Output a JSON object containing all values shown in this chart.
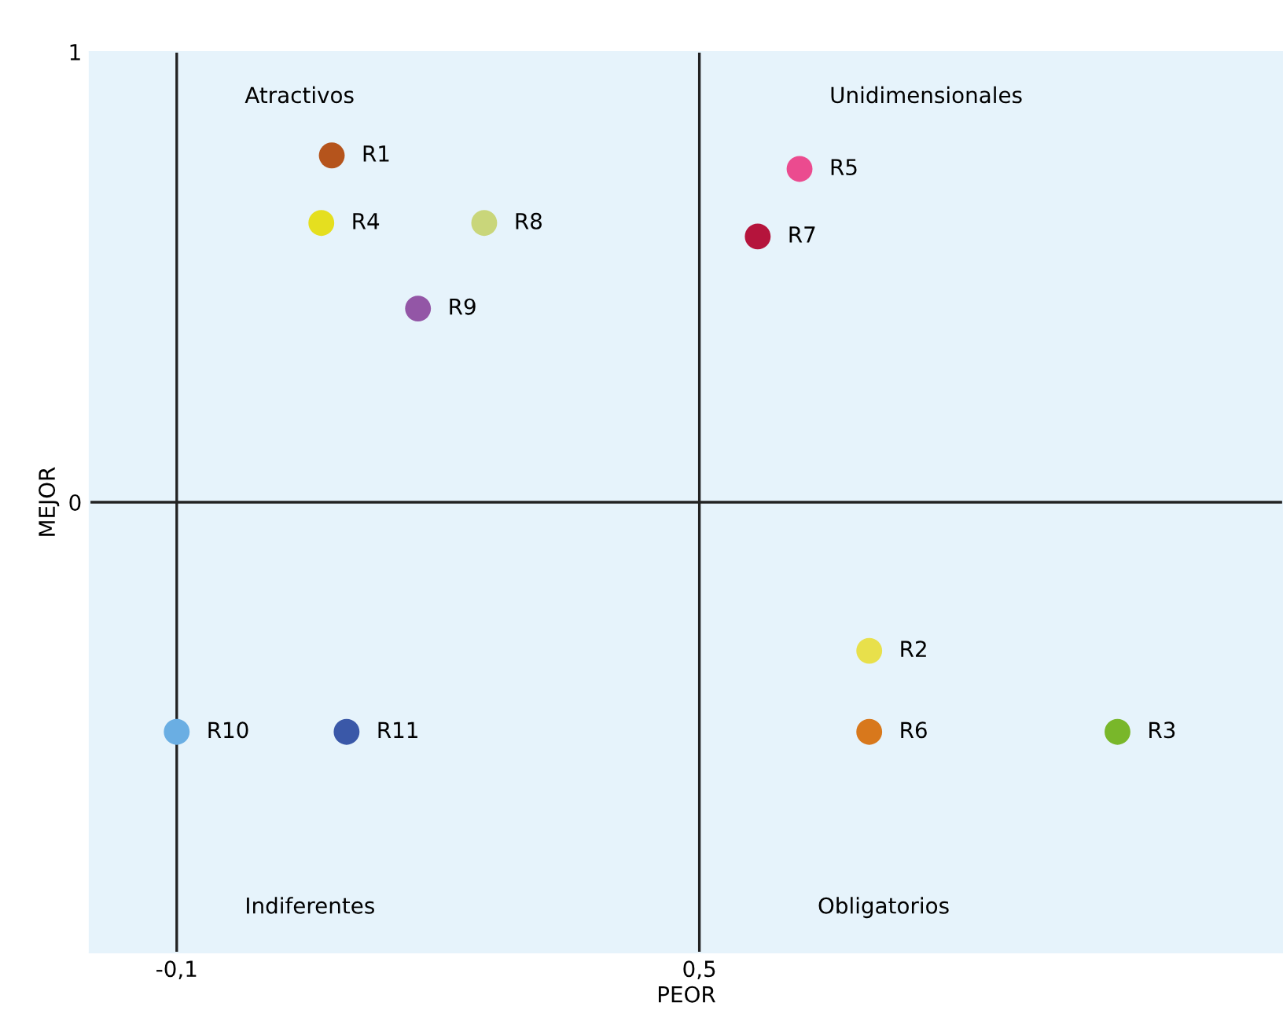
{
  "chart_data": {
    "type": "scatter",
    "xlabel": "PEOR",
    "ylabel": "MEJOR",
    "xlim": [
      -0.2,
      1.17
    ],
    "ylim": [
      -1,
      1
    ],
    "xticks": [
      {
        "value": -0.1,
        "label": "-0,1"
      },
      {
        "value": 0.5,
        "label": "0,5"
      }
    ],
    "yticks": [
      0,
      1
    ],
    "legend": false,
    "marker": "circle",
    "series": [
      {
        "name": "R1",
        "color": "#b5541c",
        "x": [
          0.078
        ],
        "values": [
          0.77
        ]
      },
      {
        "name": "R4",
        "color": "#e5df1f",
        "x": [
          0.066
        ],
        "values": [
          0.62
        ]
      },
      {
        "name": "R8",
        "color": "#c9d67a",
        "x": [
          0.253
        ],
        "values": [
          0.62
        ]
      },
      {
        "name": "R9",
        "color": "#9356a6",
        "x": [
          0.177
        ],
        "values": [
          0.43
        ]
      },
      {
        "name": "R5",
        "color": "#eb4b8f",
        "x": [
          0.615
        ],
        "values": [
          0.74
        ]
      },
      {
        "name": "R7",
        "color": "#b5143c",
        "x": [
          0.567
        ],
        "values": [
          0.59
        ]
      },
      {
        "name": "R2",
        "color": "#e8e04b",
        "x": [
          0.695
        ],
        "values": [
          -0.33
        ]
      },
      {
        "name": "R6",
        "color": "#d8781c",
        "x": [
          0.695
        ],
        "values": [
          -0.51
        ]
      },
      {
        "name": "R3",
        "color": "#79b72a",
        "x": [
          0.98
        ],
        "values": [
          -0.51
        ]
      },
      {
        "name": "R10",
        "color": "#6aaee3",
        "x": [
          -0.1
        ],
        "values": [
          -0.51
        ]
      },
      {
        "name": "R11",
        "color": "#3a58a8",
        "x": [
          0.095
        ],
        "values": [
          -0.51
        ]
      }
    ],
    "ref_lines": [
      {
        "axis": "x",
        "value": -0.1,
        "color": "#222222"
      },
      {
        "axis": "x",
        "value": 0.5,
        "color": "#222222"
      },
      {
        "axis": "y",
        "value": 0,
        "color": "#222222"
      }
    ],
    "annotations": [
      "Atractivos",
      "Unidimensionales",
      "Indiferentes",
      "Obligatorios"
    ]
  }
}
